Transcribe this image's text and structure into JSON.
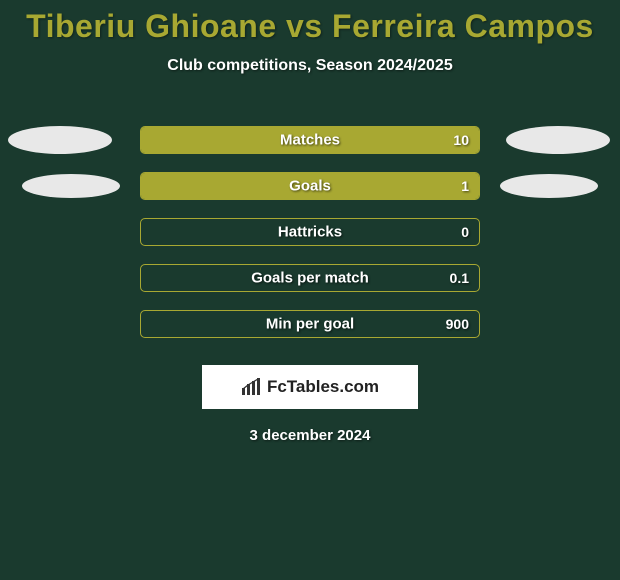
{
  "title": "Tiberiu Ghioane vs Ferreira Campos",
  "subtitle": "Club competitions, Season 2024/2025",
  "colors": {
    "background": "#1a3a2e",
    "accent": "#a8a832",
    "ellipse": "#e8e8e8",
    "text_white": "#ffffff"
  },
  "stats": [
    {
      "label": "Matches",
      "value": "10",
      "fill_left_pct": 0,
      "fill_right_pct": 100,
      "ellipse_left": true,
      "ellipse_right": true,
      "ellipse_small": false
    },
    {
      "label": "Goals",
      "value": "1",
      "fill_left_pct": 0,
      "fill_right_pct": 100,
      "ellipse_left": true,
      "ellipse_right": true,
      "ellipse_small": true
    },
    {
      "label": "Hattricks",
      "value": "0",
      "fill_left_pct": 0,
      "fill_right_pct": 0,
      "ellipse_left": false,
      "ellipse_right": false,
      "ellipse_small": false
    },
    {
      "label": "Goals per match",
      "value": "0.1",
      "fill_left_pct": 0,
      "fill_right_pct": 0,
      "ellipse_left": false,
      "ellipse_right": false,
      "ellipse_small": false
    },
    {
      "label": "Min per goal",
      "value": "900",
      "fill_left_pct": 0,
      "fill_right_pct": 0,
      "ellipse_left": false,
      "ellipse_right": false,
      "ellipse_small": false
    }
  ],
  "logo_text": "FcTables.com",
  "date": "3 december 2024"
}
